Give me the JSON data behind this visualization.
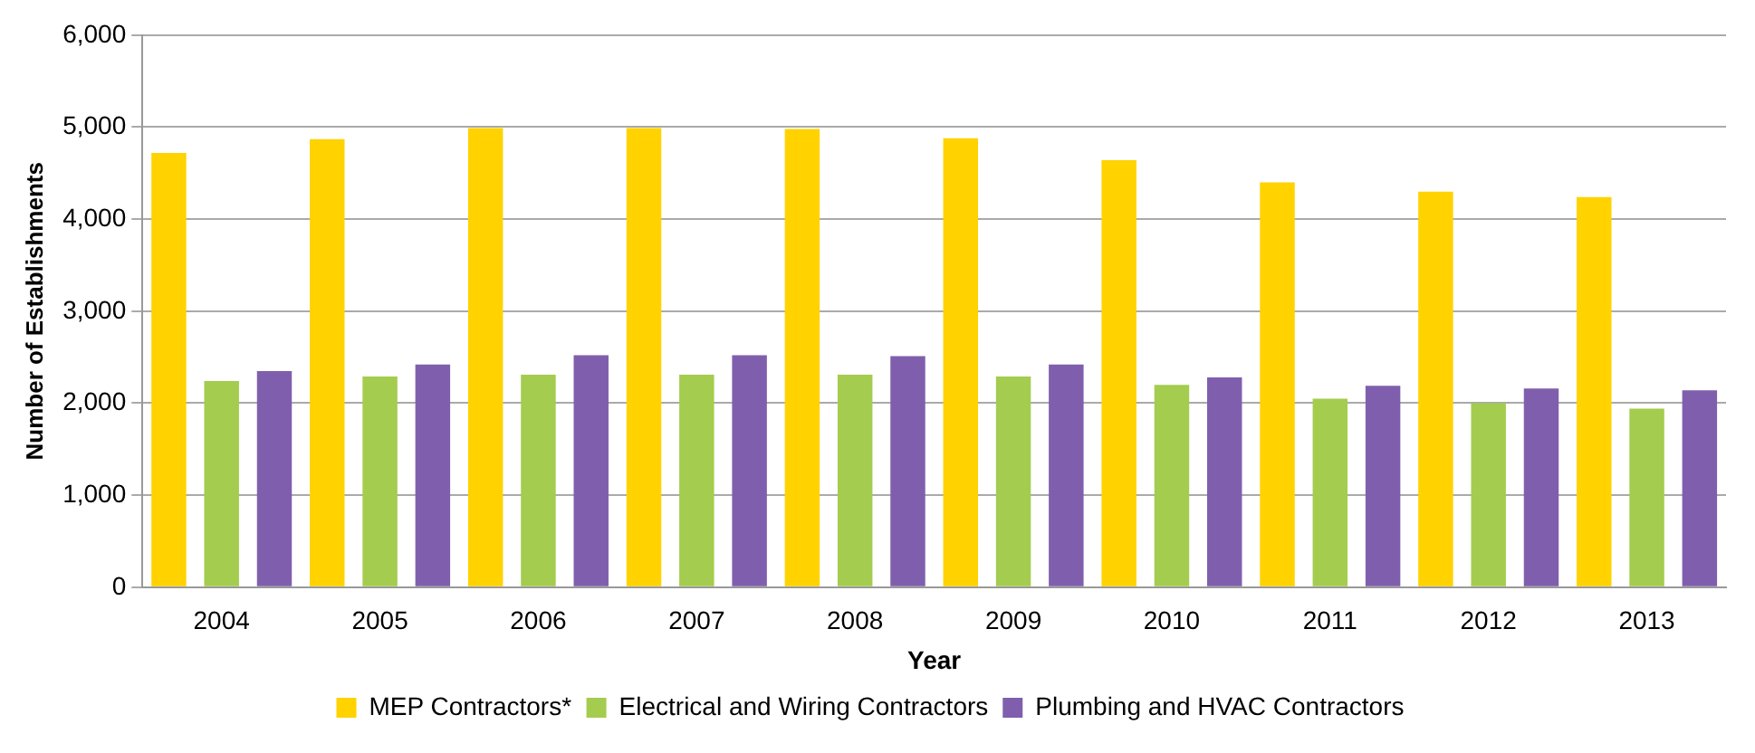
{
  "chart_data": {
    "type": "bar",
    "xlabel": "Year",
    "ylabel": "Number of Establishments",
    "categories": [
      "2004",
      "2005",
      "2006",
      "2007",
      "2008",
      "2009",
      "2010",
      "2011",
      "2012",
      "2013"
    ],
    "series": [
      {
        "name": "MEP Contractors*",
        "color": "#ffd200",
        "values": [
          4720,
          4870,
          4990,
          4990,
          4980,
          4880,
          4640,
          4400,
          4300,
          4240
        ]
      },
      {
        "name": "Electrical and Wiring Contractors",
        "color": "#a4cc4e",
        "values": [
          2240,
          2290,
          2310,
          2310,
          2310,
          2290,
          2200,
          2050,
          2000,
          1940
        ]
      },
      {
        "name": "Plumbing and HVAC Contractors",
        "color": "#7f5fad",
        "values": [
          2350,
          2420,
          2520,
          2520,
          2510,
          2420,
          2280,
          2190,
          2160,
          2140
        ]
      }
    ],
    "ylim": [
      0,
      6000
    ],
    "yticks": [
      {
        "value": 0,
        "label": "0"
      },
      {
        "value": 1000,
        "label": "1,000"
      },
      {
        "value": 2000,
        "label": "2,000"
      },
      {
        "value": 3000,
        "label": "3,000"
      },
      {
        "value": 4000,
        "label": "4,000"
      },
      {
        "value": 5000,
        "label": "5,000"
      },
      {
        "value": 6000,
        "label": "6,000"
      }
    ],
    "grid": "y",
    "legend": "bottom"
  }
}
